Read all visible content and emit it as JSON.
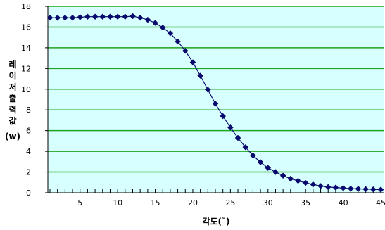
{
  "chart_data": {
    "type": "line",
    "xlabel": "각도(˚)",
    "ylabel_chars": [
      "레",
      "이",
      "저",
      "출",
      "력",
      "값"
    ],
    "ylabel_unit": "(w)",
    "xlim": [
      1,
      45
    ],
    "ylim": [
      0,
      18
    ],
    "x_ticks": [
      5,
      10,
      15,
      20,
      25,
      30,
      35,
      40,
      45
    ],
    "y_ticks": [
      0,
      2,
      4,
      6,
      8,
      10,
      12,
      14,
      16,
      18
    ],
    "grid": "horizontal",
    "series": [
      {
        "marker": "diamond",
        "color": "#0a0a6e",
        "x": [
          1,
          2,
          3,
          4,
          5,
          6,
          7,
          8,
          9,
          10,
          11,
          12,
          13,
          14,
          15,
          16,
          17,
          18,
          19,
          20,
          21,
          22,
          23,
          24,
          25,
          26,
          27,
          28,
          29,
          30,
          31,
          32,
          33,
          34,
          35,
          36,
          37,
          38,
          39,
          40,
          41,
          42,
          43,
          44,
          45
        ],
        "values": [
          16.9,
          16.9,
          16.9,
          16.9,
          16.95,
          17.0,
          17.0,
          17.0,
          17.0,
          17.0,
          17.0,
          17.05,
          16.9,
          16.7,
          16.4,
          15.95,
          15.4,
          14.6,
          13.7,
          12.6,
          11.3,
          9.95,
          8.6,
          7.4,
          6.3,
          5.3,
          4.4,
          3.6,
          2.95,
          2.4,
          2.0,
          1.65,
          1.35,
          1.15,
          0.95,
          0.8,
          0.65,
          0.55,
          0.5,
          0.45,
          0.4,
          0.38,
          0.35,
          0.33,
          0.3
        ]
      }
    ]
  }
}
